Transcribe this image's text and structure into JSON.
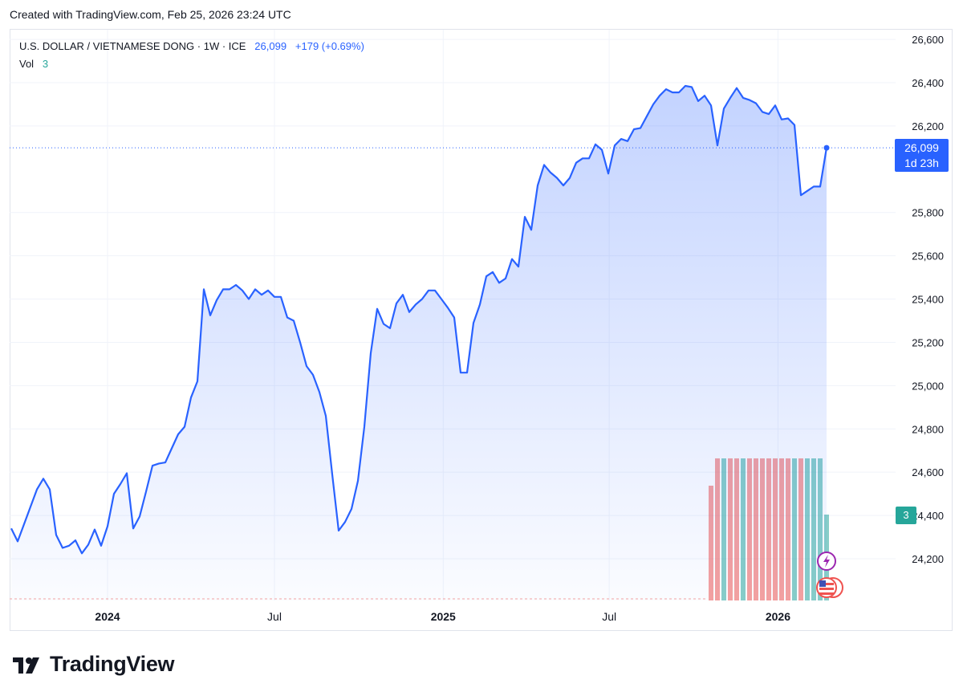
{
  "header": {
    "created": "Created with TradingView.com, Feb 25, 2026 23:24 UTC"
  },
  "legend": {
    "symbol": "U.S. DOLLAR / VIETNAMESE DONG · 1W · ICE",
    "price": "26,099",
    "change": "+179 (+0.69%)",
    "vol_label": "Vol",
    "vol_value": "3"
  },
  "price_tag": {
    "price": "26,099",
    "countdown": "1d 23h"
  },
  "vol_tag": "3",
  "brand": {
    "name": "TradingView"
  },
  "colors": {
    "line": "#2962ff",
    "vol_up": "#26a69a",
    "vol_down": "#ef5350",
    "grid": "#f0f3fa"
  },
  "chart_data": {
    "type": "area",
    "y_ticks": [
      "26,600",
      "26,400",
      "26,200",
      "25,800",
      "25,600",
      "25,400",
      "25,200",
      "25,000",
      "24,800",
      "24,600",
      "24,400",
      "24,200"
    ],
    "x_ticks": [
      {
        "label": "2024",
        "bold": true,
        "date": "2024-01-01"
      },
      {
        "label": "Jul",
        "bold": false,
        "date": "2024-07-01"
      },
      {
        "label": "2025",
        "bold": true,
        "date": "2025-01-01"
      },
      {
        "label": "Jul",
        "bold": false,
        "date": "2025-07-01"
      },
      {
        "label": "2026",
        "bold": true,
        "date": "2026-01-01"
      }
    ],
    "ylim": [
      24000,
      26600
    ],
    "last_price": 26099,
    "series": [
      {
        "values": [
          [
            "2023-09-18",
            24340
          ],
          [
            "2023-09-25",
            24280
          ],
          [
            "2023-10-02",
            24360
          ],
          [
            "2023-10-09",
            24440
          ],
          [
            "2023-10-16",
            24520
          ],
          [
            "2023-10-23",
            24570
          ],
          [
            "2023-10-30",
            24520
          ],
          [
            "2023-11-06",
            24310
          ],
          [
            "2023-11-13",
            24250
          ],
          [
            "2023-11-20",
            24260
          ],
          [
            "2023-11-27",
            24285
          ],
          [
            "2023-12-04",
            24225
          ],
          [
            "2023-12-11",
            24265
          ],
          [
            "2023-12-18",
            24335
          ],
          [
            "2023-12-25",
            24260
          ],
          [
            "2024-01-01",
            24350
          ],
          [
            "2024-01-08",
            24500
          ],
          [
            "2024-01-15",
            24545
          ],
          [
            "2024-01-22",
            24595
          ],
          [
            "2024-01-29",
            24340
          ],
          [
            "2024-02-05",
            24395
          ],
          [
            "2024-02-12",
            24510
          ],
          [
            "2024-02-19",
            24630
          ],
          [
            "2024-02-26",
            24640
          ],
          [
            "2024-03-04",
            24645
          ],
          [
            "2024-03-11",
            24710
          ],
          [
            "2024-03-18",
            24775
          ],
          [
            "2024-03-25",
            24810
          ],
          [
            "2024-04-01",
            24945
          ],
          [
            "2024-04-08",
            25020
          ],
          [
            "2024-04-15",
            25445
          ],
          [
            "2024-04-22",
            25325
          ],
          [
            "2024-04-29",
            25395
          ],
          [
            "2024-05-06",
            25445
          ],
          [
            "2024-05-13",
            25445
          ],
          [
            "2024-05-20",
            25465
          ],
          [
            "2024-05-27",
            25440
          ],
          [
            "2024-06-03",
            25400
          ],
          [
            "2024-06-10",
            25445
          ],
          [
            "2024-06-17",
            25420
          ],
          [
            "2024-06-24",
            25440
          ],
          [
            "2024-07-01",
            25410
          ],
          [
            "2024-07-08",
            25410
          ],
          [
            "2024-07-15",
            25315
          ],
          [
            "2024-07-22",
            25300
          ],
          [
            "2024-07-29",
            25200
          ],
          [
            "2024-08-05",
            25090
          ],
          [
            "2024-08-12",
            25050
          ],
          [
            "2024-08-19",
            24970
          ],
          [
            "2024-08-26",
            24860
          ],
          [
            "2024-09-02",
            24590
          ],
          [
            "2024-09-09",
            24330
          ],
          [
            "2024-09-16",
            24370
          ],
          [
            "2024-09-23",
            24430
          ],
          [
            "2024-09-30",
            24560
          ],
          [
            "2024-10-07",
            24810
          ],
          [
            "2024-10-14",
            25150
          ],
          [
            "2024-10-21",
            25355
          ],
          [
            "2024-10-28",
            25285
          ],
          [
            "2024-11-04",
            25265
          ],
          [
            "2024-11-11",
            25380
          ],
          [
            "2024-11-18",
            25420
          ],
          [
            "2024-11-25",
            25340
          ],
          [
            "2024-12-02",
            25375
          ],
          [
            "2024-12-09",
            25400
          ],
          [
            "2024-12-16",
            25440
          ],
          [
            "2024-12-23",
            25440
          ],
          [
            "2024-12-30",
            25400
          ],
          [
            "2025-01-06",
            25360
          ],
          [
            "2025-01-13",
            25315
          ],
          [
            "2025-01-20",
            25060
          ],
          [
            "2025-01-27",
            25060
          ],
          [
            "2025-02-03",
            25290
          ],
          [
            "2025-02-10",
            25375
          ],
          [
            "2025-02-17",
            25505
          ],
          [
            "2025-02-24",
            25525
          ],
          [
            "2025-03-03",
            25475
          ],
          [
            "2025-03-10",
            25495
          ],
          [
            "2025-03-17",
            25585
          ],
          [
            "2025-03-24",
            25550
          ],
          [
            "2025-03-31",
            25780
          ],
          [
            "2025-04-07",
            25720
          ],
          [
            "2025-04-14",
            25925
          ],
          [
            "2025-04-21",
            26020
          ],
          [
            "2025-04-28",
            25985
          ],
          [
            "2025-05-05",
            25960
          ],
          [
            "2025-05-12",
            25925
          ],
          [
            "2025-05-19",
            25960
          ],
          [
            "2025-05-26",
            26030
          ],
          [
            "2025-06-02",
            26050
          ],
          [
            "2025-06-09",
            26050
          ],
          [
            "2025-06-16",
            26115
          ],
          [
            "2025-06-23",
            26090
          ],
          [
            "2025-06-30",
            25980
          ],
          [
            "2025-07-07",
            26110
          ],
          [
            "2025-07-14",
            26140
          ],
          [
            "2025-07-21",
            26130
          ],
          [
            "2025-07-28",
            26185
          ],
          [
            "2025-08-04",
            26190
          ],
          [
            "2025-08-11",
            26245
          ],
          [
            "2025-08-18",
            26300
          ],
          [
            "2025-08-25",
            26340
          ],
          [
            "2025-09-01",
            26370
          ],
          [
            "2025-09-08",
            26355
          ],
          [
            "2025-09-15",
            26355
          ],
          [
            "2025-09-22",
            26385
          ],
          [
            "2025-09-29",
            26380
          ],
          [
            "2025-10-06",
            26315
          ],
          [
            "2025-10-13",
            26340
          ],
          [
            "2025-10-20",
            26295
          ],
          [
            "2025-10-27",
            26110
          ],
          [
            "2025-11-03",
            26280
          ],
          [
            "2025-11-10",
            26330
          ],
          [
            "2025-11-17",
            26375
          ],
          [
            "2025-11-24",
            26330
          ],
          [
            "2025-12-01",
            26320
          ],
          [
            "2025-12-08",
            26305
          ],
          [
            "2025-12-15",
            26265
          ],
          [
            "2025-12-22",
            26255
          ],
          [
            "2025-12-29",
            26295
          ],
          [
            "2026-01-05",
            26230
          ],
          [
            "2026-01-12",
            26235
          ],
          [
            "2026-01-19",
            26205
          ],
          [
            "2026-01-26",
            25880
          ],
          [
            "2026-02-02",
            25900
          ],
          [
            "2026-02-09",
            25920
          ],
          [
            "2026-02-16",
            25920
          ],
          [
            "2026-02-23",
            26099
          ]
        ]
      }
    ],
    "volume": [
      {
        "date": "2025-10-20",
        "value": 3,
        "dir": "down"
      },
      {
        "date": "2025-10-27",
        "value": 3,
        "dir": "down"
      },
      {
        "date": "2025-11-03",
        "value": 3,
        "dir": "up"
      },
      {
        "date": "2025-11-10",
        "value": 3,
        "dir": "down"
      },
      {
        "date": "2025-11-17",
        "value": 3,
        "dir": "down"
      },
      {
        "date": "2025-11-24",
        "value": 3,
        "dir": "up"
      },
      {
        "date": "2025-12-01",
        "value": 3,
        "dir": "down"
      },
      {
        "date": "2025-12-08",
        "value": 3,
        "dir": "down"
      },
      {
        "date": "2025-12-15",
        "value": 3,
        "dir": "down"
      },
      {
        "date": "2025-12-22",
        "value": 3,
        "dir": "down"
      },
      {
        "date": "2025-12-29",
        "value": 3,
        "dir": "down"
      },
      {
        "date": "2026-01-05",
        "value": 3,
        "dir": "down"
      },
      {
        "date": "2026-01-12",
        "value": 3,
        "dir": "down"
      },
      {
        "date": "2026-01-19",
        "value": 3,
        "dir": "up"
      },
      {
        "date": "2026-01-26",
        "value": 3,
        "dir": "down"
      },
      {
        "date": "2026-02-02",
        "value": 3,
        "dir": "up"
      },
      {
        "date": "2026-02-09",
        "value": 3,
        "dir": "up"
      },
      {
        "date": "2026-02-16",
        "value": 3,
        "dir": "up"
      },
      {
        "date": "2026-02-23",
        "value": 3,
        "dir": "up"
      }
    ],
    "grid": true,
    "legend_position": "top-left"
  }
}
